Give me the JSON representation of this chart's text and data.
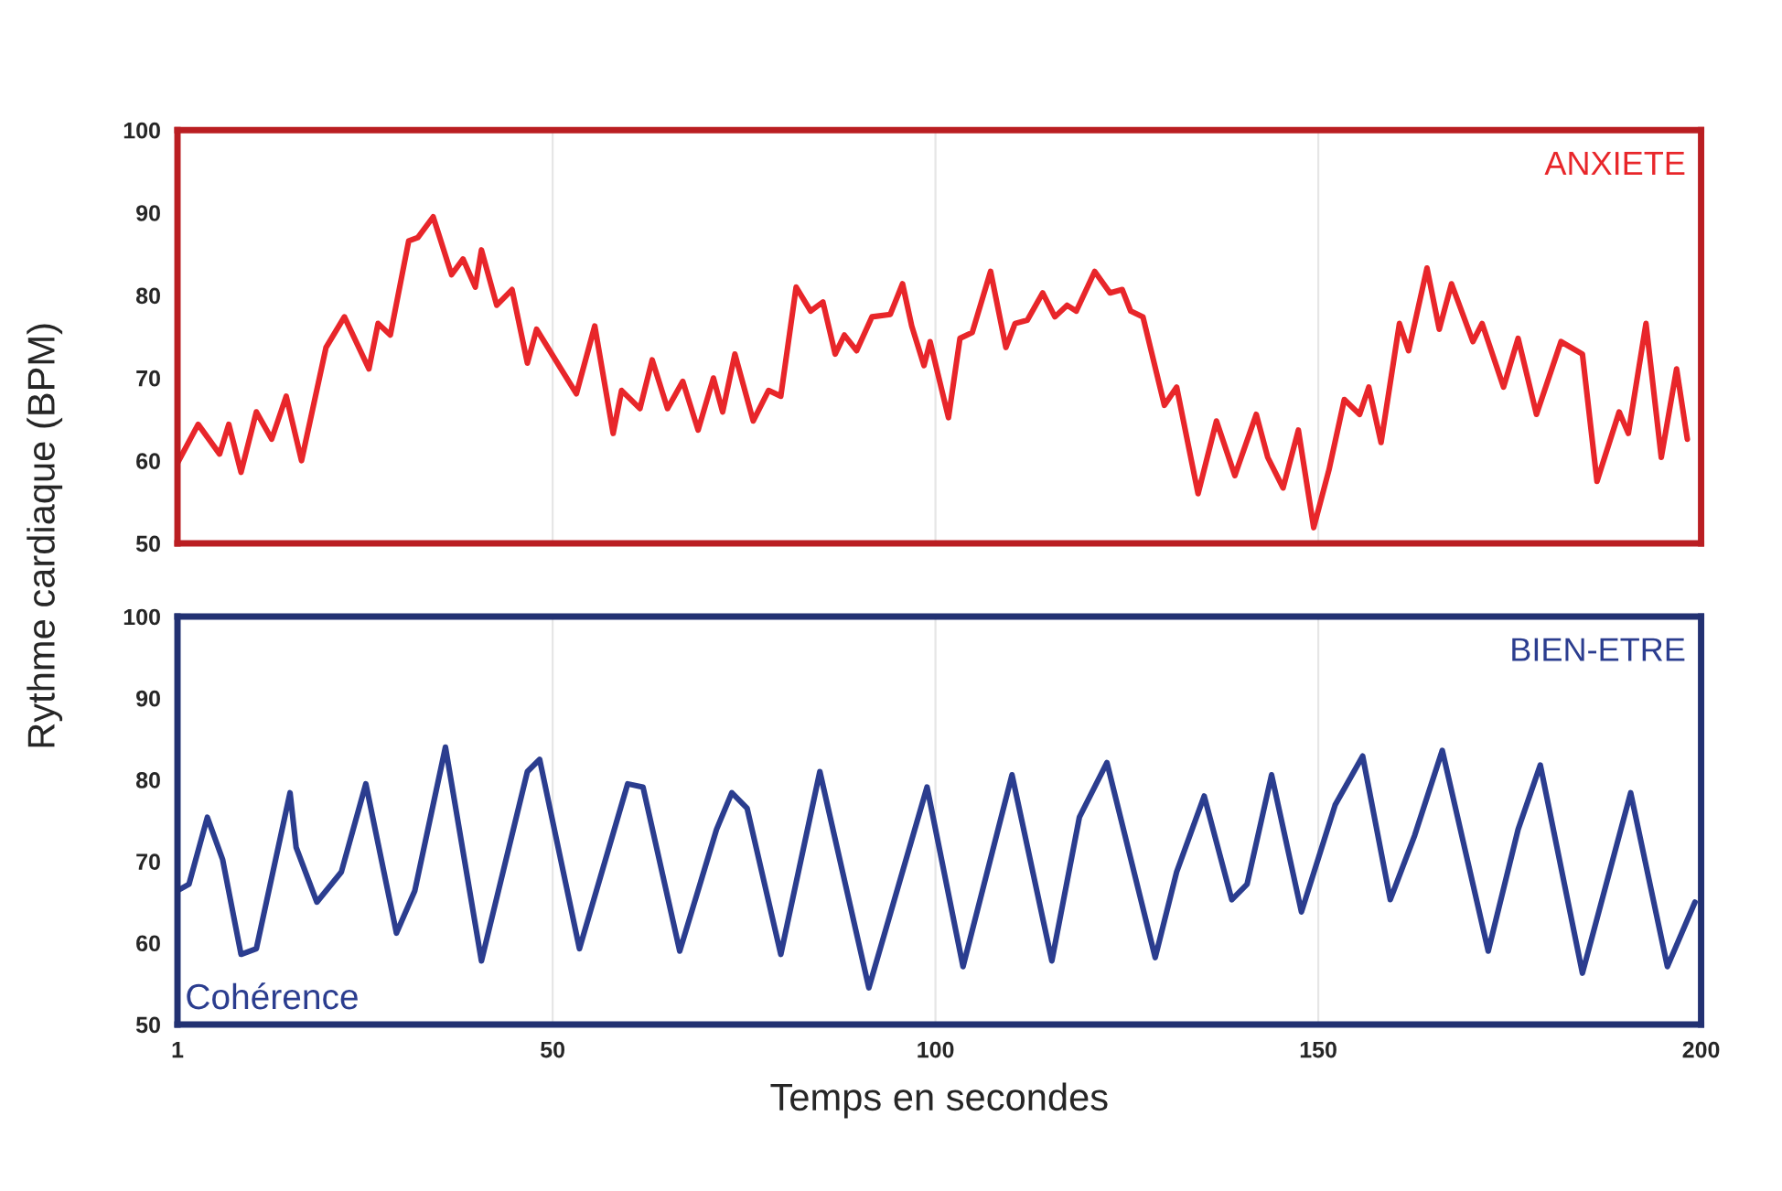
{
  "chart_data": [
    {
      "type": "line",
      "ylabel": "Rythme cardiaque (BPM)",
      "xlim": [
        1,
        200
      ],
      "xticks": [
        1,
        50,
        100,
        150,
        200
      ],
      "ylim": [
        50,
        100
      ],
      "yticks": [
        50,
        60,
        70,
        80,
        90,
        100
      ],
      "tick_labels": "y",
      "grid": "x",
      "legend": false,
      "series": [
        {
          "name": "ANXIETE",
          "color": "#e8262a",
          "x": [
            1,
            3.7,
            6.5,
            7.7,
            9.3,
            11.3,
            13.3,
            15.2,
            17.2,
            20.4,
            22.8,
            26,
            27.2,
            28.8,
            31.2,
            32.4,
            34.4,
            36.8,
            38.3,
            39.9,
            40.7,
            42.7,
            44.7,
            46.7,
            47.9,
            51.1,
            53.1,
            55.5,
            57.9,
            59,
            61.4,
            63,
            65,
            67,
            69,
            71,
            72.2,
            73.8,
            76.2,
            78.2,
            79.8,
            81.8,
            83.7,
            85.3,
            86.9,
            88.1,
            89.7,
            91.7,
            94.1,
            95.7,
            96.9,
            98.5,
            99.3,
            101.7,
            103.2,
            104.8,
            107.2,
            109.2,
            110.4,
            112,
            114,
            115.6,
            117.2,
            118.4,
            120.8,
            122.8,
            124.4,
            125.5,
            127.1,
            129.9,
            131.5,
            134.3,
            136.7,
            139.1,
            141.9,
            143.4,
            145.4,
            147.4,
            149.4,
            151.4,
            153.4,
            155.4,
            156.6,
            158.2,
            160.6,
            161.8,
            164.2,
            165.8,
            167.4,
            170.2,
            171.4,
            174.2,
            176.1,
            178.5,
            181.7,
            184.5,
            186.4,
            189.3,
            190.5,
            192.8,
            194.8,
            196.8,
            198.2
          ],
          "values": [
            59.7,
            64.4,
            60.8,
            64.4,
            58.6,
            65.9,
            62.6,
            67.8,
            60,
            73.7,
            77.4,
            71.1,
            76.6,
            75.2,
            86.6,
            87,
            89.5,
            82.5,
            84.4,
            81,
            85.5,
            78.8,
            80.7,
            71.8,
            75.9,
            71.1,
            68.1,
            76.3,
            63.3,
            68.5,
            66.3,
            72.2,
            66.3,
            69.6,
            63.7,
            70,
            65.9,
            72.9,
            64.8,
            68.5,
            67.8,
            81,
            78.1,
            79.2,
            72.9,
            75.2,
            73.3,
            77.4,
            77.7,
            81.4,
            76.3,
            71.5,
            74.4,
            65.2,
            74.8,
            75.5,
            82.9,
            73.7,
            76.6,
            77,
            80.3,
            77.4,
            78.8,
            78.1,
            82.9,
            80.3,
            80.7,
            78.1,
            77.4,
            66.7,
            68.9,
            56,
            64.8,
            58.2,
            65.6,
            60.4,
            56.7,
            63.7,
            51.9,
            58.9,
            67.4,
            65.6,
            68.9,
            62.2,
            76.6,
            73.3,
            83.3,
            75.9,
            81.4,
            74.4,
            76.6,
            68.9,
            74.8,
            65.6,
            74.4,
            72.9,
            57.5,
            65.9,
            63.3,
            76.6,
            60.4,
            71.1,
            62.6
          ]
        }
      ]
    },
    {
      "type": "line",
      "xlabel": "Temps en secondes",
      "xlim": [
        1,
        200
      ],
      "xticks": [
        1,
        50,
        100,
        150,
        200
      ],
      "ylim": [
        50,
        100
      ],
      "yticks": [
        50,
        60,
        70,
        80,
        90,
        100
      ],
      "grid": "x",
      "legend": false,
      "annotations": [
        "Cohérence"
      ],
      "series": [
        {
          "name": "BIEN-ETRE",
          "color": "#2b3d8f",
          "x": [
            1,
            2.5,
            4.9,
            6.9,
            9.3,
            11.3,
            15.7,
            16.5,
            19.2,
            22.4,
            25.6,
            29.6,
            32,
            36,
            40.7,
            46.7,
            48.3,
            53.5,
            59.8,
            61.8,
            66.6,
            71.4,
            73.4,
            75.4,
            79.8,
            84.9,
            91.3,
            98.9,
            103.6,
            110,
            115.2,
            118.8,
            122.4,
            128.7,
            131.5,
            135.1,
            138.7,
            140.7,
            143.9,
            147.8,
            152.2,
            155.8,
            159.4,
            162.6,
            166.2,
            172.2,
            176.1,
            179,
            184.5,
            190.8,
            195.6,
            199.2
          ],
          "values": [
            66.4,
            67.2,
            75.4,
            70.2,
            58.6,
            59.3,
            78.4,
            71.7,
            65,
            68.7,
            79.5,
            61.2,
            66.4,
            84,
            57.8,
            81,
            82.5,
            59.3,
            79.5,
            79.1,
            59,
            73.9,
            78.4,
            76.5,
            58.6,
            81,
            54.5,
            79.1,
            57.1,
            80.6,
            57.8,
            75.4,
            82.1,
            58.2,
            68.7,
            78,
            65.3,
            67.2,
            80.6,
            63.8,
            76.9,
            82.9,
            65.3,
            73.2,
            83.6,
            59,
            73.9,
            81.8,
            56.3,
            78.4,
            57.1,
            65
          ]
        }
      ]
    }
  ]
}
